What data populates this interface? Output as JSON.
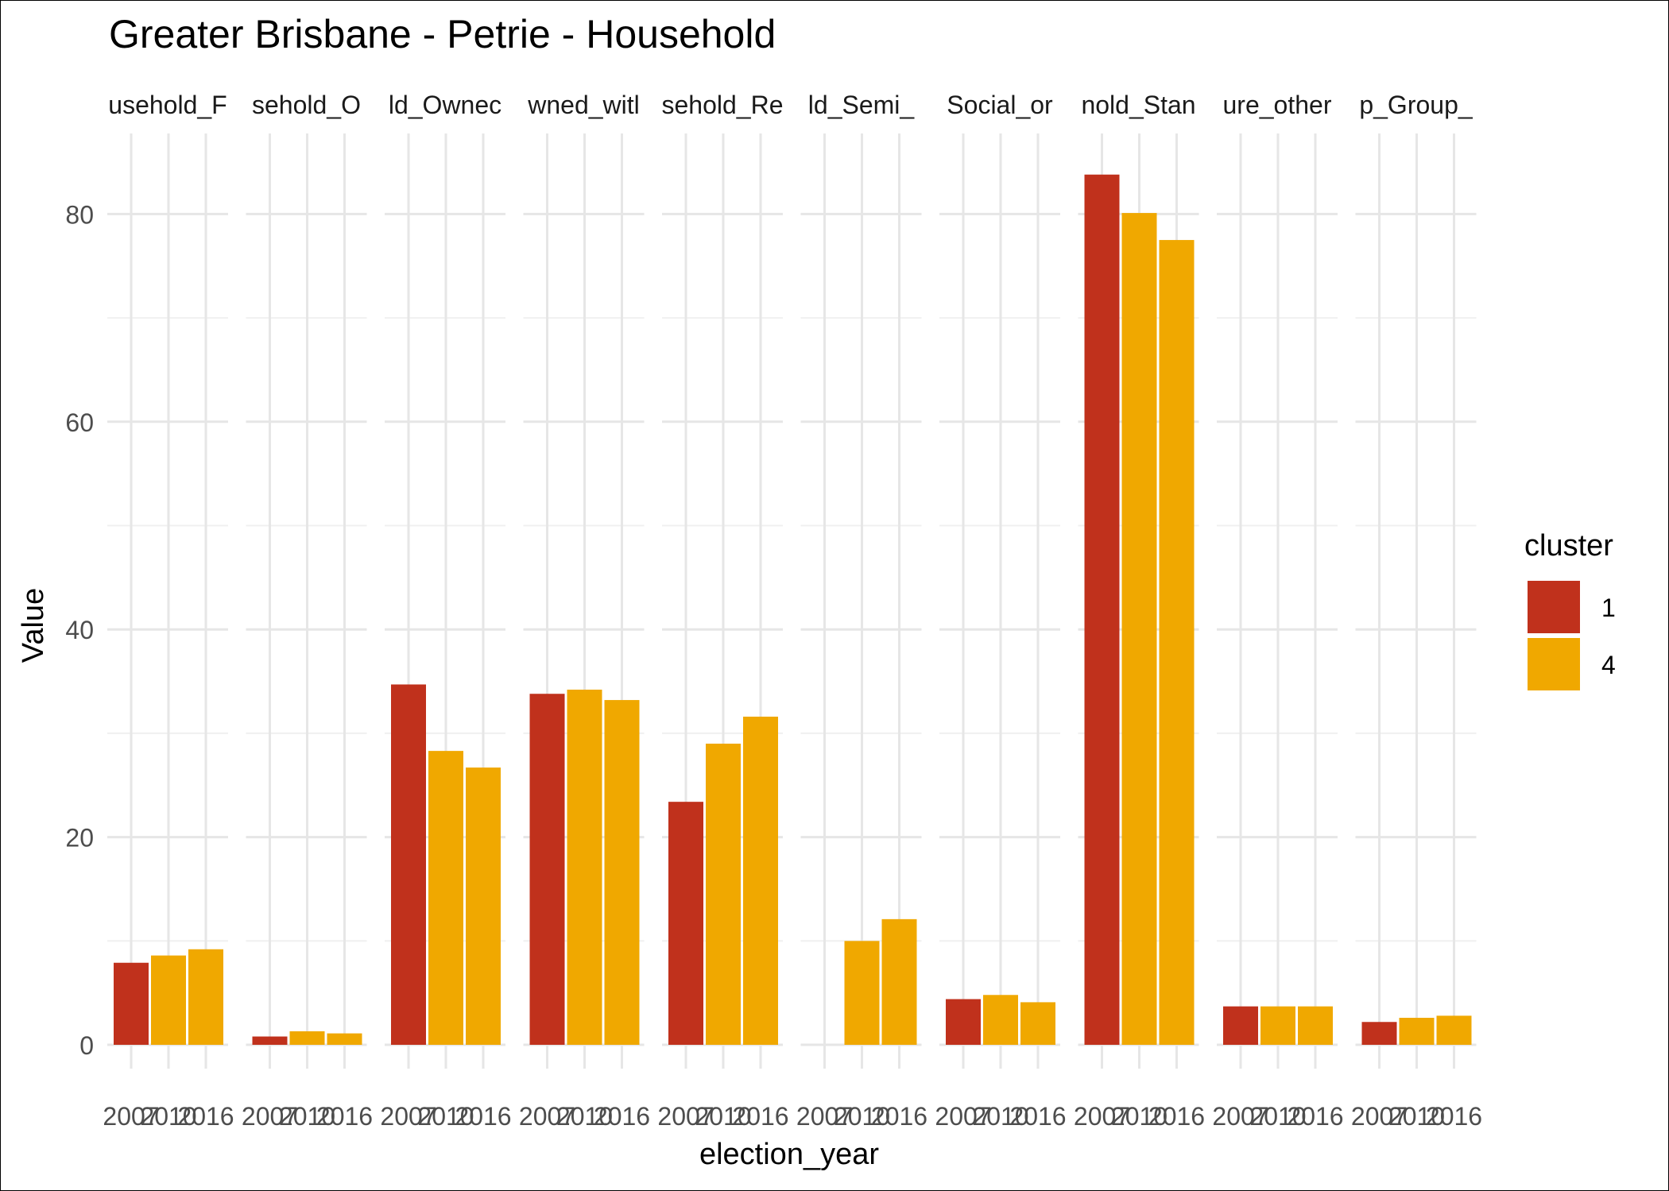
{
  "chart_data": {
    "type": "bar",
    "title": "Greater Brisbane - Petrie - Household",
    "xlabel": "election_year",
    "ylabel": "Value",
    "ylim": [
      -2,
      88
    ],
    "yticks": [
      0,
      20,
      40,
      60,
      80
    ],
    "grid": true,
    "legend": {
      "title": "cluster",
      "position": "right",
      "entries": [
        {
          "label": "1",
          "color": "#C0311C"
        },
        {
          "label": "4",
          "color": "#F0A800"
        }
      ]
    },
    "x_tick_labels": [
      "2007",
      "2010",
      "2016"
    ],
    "panels": [
      {
        "strip": "usehold_F",
        "bars": [
          {
            "x": "2007",
            "value": 7.9,
            "cluster": "1"
          },
          {
            "x": "2010",
            "value": 8.6,
            "cluster": "4"
          },
          {
            "x": "2016",
            "value": 9.2,
            "cluster": "4"
          }
        ]
      },
      {
        "strip": "sehold_O",
        "bars": [
          {
            "x": "2007",
            "value": 0.8,
            "cluster": "1"
          },
          {
            "x": "2010",
            "value": 1.3,
            "cluster": "4"
          },
          {
            "x": "2016",
            "value": 1.1,
            "cluster": "4"
          }
        ]
      },
      {
        "strip": "ld_Ownec",
        "bars": [
          {
            "x": "2007",
            "value": 34.7,
            "cluster": "1"
          },
          {
            "x": "2010",
            "value": 28.3,
            "cluster": "4"
          },
          {
            "x": "2016",
            "value": 26.7,
            "cluster": "4"
          }
        ]
      },
      {
        "strip": "wned_witl",
        "bars": [
          {
            "x": "2007",
            "value": 33.8,
            "cluster": "1"
          },
          {
            "x": "2010",
            "value": 34.2,
            "cluster": "4"
          },
          {
            "x": "2016",
            "value": 33.2,
            "cluster": "4"
          }
        ]
      },
      {
        "strip": "sehold_Re",
        "bars": [
          {
            "x": "2007",
            "value": 23.4,
            "cluster": "1"
          },
          {
            "x": "2010",
            "value": 29.0,
            "cluster": "4"
          },
          {
            "x": "2016",
            "value": 31.6,
            "cluster": "4"
          }
        ]
      },
      {
        "strip": "ld_Semi_",
        "bars": [
          {
            "x": "2010",
            "value": 10.0,
            "cluster": "4"
          },
          {
            "x": "2016",
            "value": 12.1,
            "cluster": "4"
          }
        ]
      },
      {
        "strip": "Social_or",
        "bars": [
          {
            "x": "2007",
            "value": 4.4,
            "cluster": "1"
          },
          {
            "x": "2010",
            "value": 4.8,
            "cluster": "4"
          },
          {
            "x": "2016",
            "value": 4.1,
            "cluster": "4"
          }
        ]
      },
      {
        "strip": "nold_Stan",
        "bars": [
          {
            "x": "2007",
            "value": 83.8,
            "cluster": "1"
          },
          {
            "x": "2010",
            "value": 80.1,
            "cluster": "4"
          },
          {
            "x": "2016",
            "value": 77.5,
            "cluster": "4"
          }
        ]
      },
      {
        "strip": "ure_other",
        "bars": [
          {
            "x": "2007",
            "value": 3.7,
            "cluster": "1"
          },
          {
            "x": "2010",
            "value": 3.7,
            "cluster": "4"
          },
          {
            "x": "2016",
            "value": 3.7,
            "cluster": "4"
          }
        ]
      },
      {
        "strip": "p_Group_",
        "bars": [
          {
            "x": "2007",
            "value": 2.2,
            "cluster": "1"
          },
          {
            "x": "2010",
            "value": 2.6,
            "cluster": "4"
          },
          {
            "x": "2016",
            "value": 2.8,
            "cluster": "4"
          }
        ]
      }
    ]
  }
}
